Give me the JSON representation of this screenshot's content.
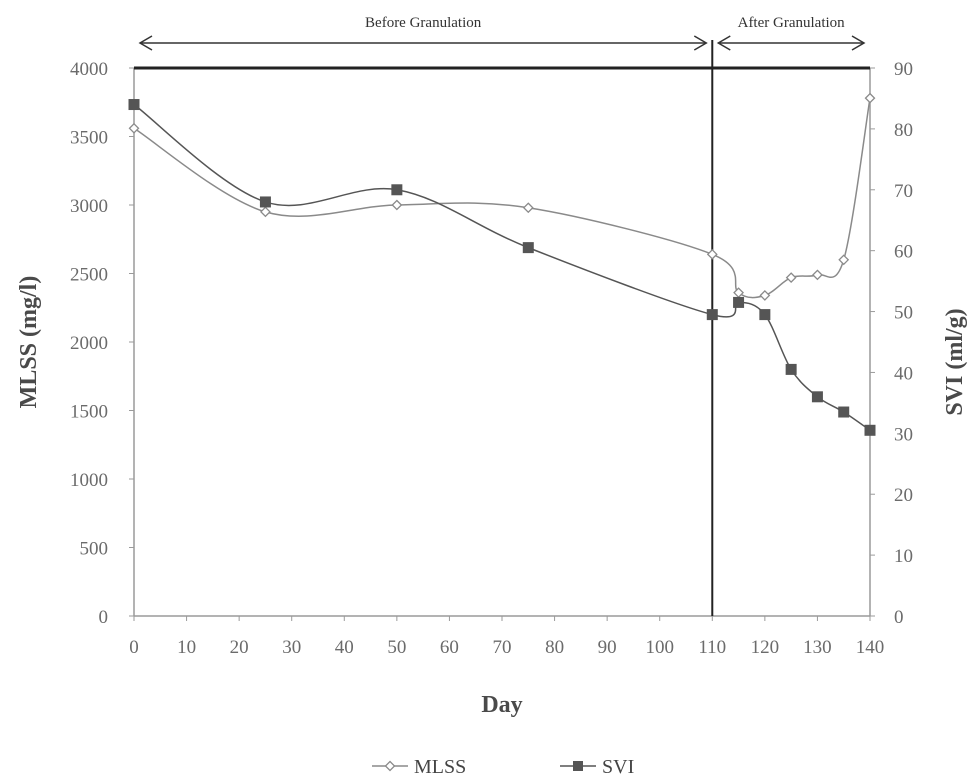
{
  "chart_data": {
    "type": "line",
    "xlabel": "Day",
    "ylabel_left": "MLSS (mg/l)",
    "ylabel_right": "SVI (ml/g)",
    "xlim": [
      0,
      140
    ],
    "ylim_left": [
      0,
      4000
    ],
    "ylim_right": [
      0,
      90
    ],
    "x_ticks": [
      0,
      10,
      20,
      30,
      40,
      50,
      60,
      70,
      80,
      90,
      100,
      110,
      120,
      130,
      140
    ],
    "y_ticks_left": [
      0,
      500,
      1000,
      1500,
      2000,
      2500,
      3000,
      3500,
      4000
    ],
    "y_ticks_right": [
      0,
      10,
      20,
      30,
      40,
      50,
      60,
      70,
      80,
      90
    ],
    "grid": false,
    "legend": "bottom",
    "series": [
      {
        "name": "MLSS",
        "axis": "left",
        "color": "#8a8a8a",
        "marker": "open-diamond",
        "x": [
          0,
          25,
          50,
          75,
          110,
          115,
          120,
          125,
          130,
          135,
          140
        ],
        "y": [
          3560,
          2950,
          3000,
          2980,
          2640,
          2360,
          2340,
          2470,
          2490,
          2600,
          3780
        ]
      },
      {
        "name": "SVI",
        "axis": "right",
        "color": "#555555",
        "marker": "filled-square",
        "x": [
          0,
          25,
          50,
          75,
          110,
          115,
          120,
          125,
          130,
          135,
          140
        ],
        "y": [
          84,
          68,
          70,
          60.5,
          49.5,
          51.5,
          49.5,
          40.5,
          36,
          33.5,
          30.5
        ]
      }
    ],
    "annotations": [
      {
        "text": "Before Granulation",
        "from": 0,
        "to": 110
      },
      {
        "text": "After Granulation",
        "from": 110,
        "to": 140
      }
    ],
    "divider_x": 110
  }
}
